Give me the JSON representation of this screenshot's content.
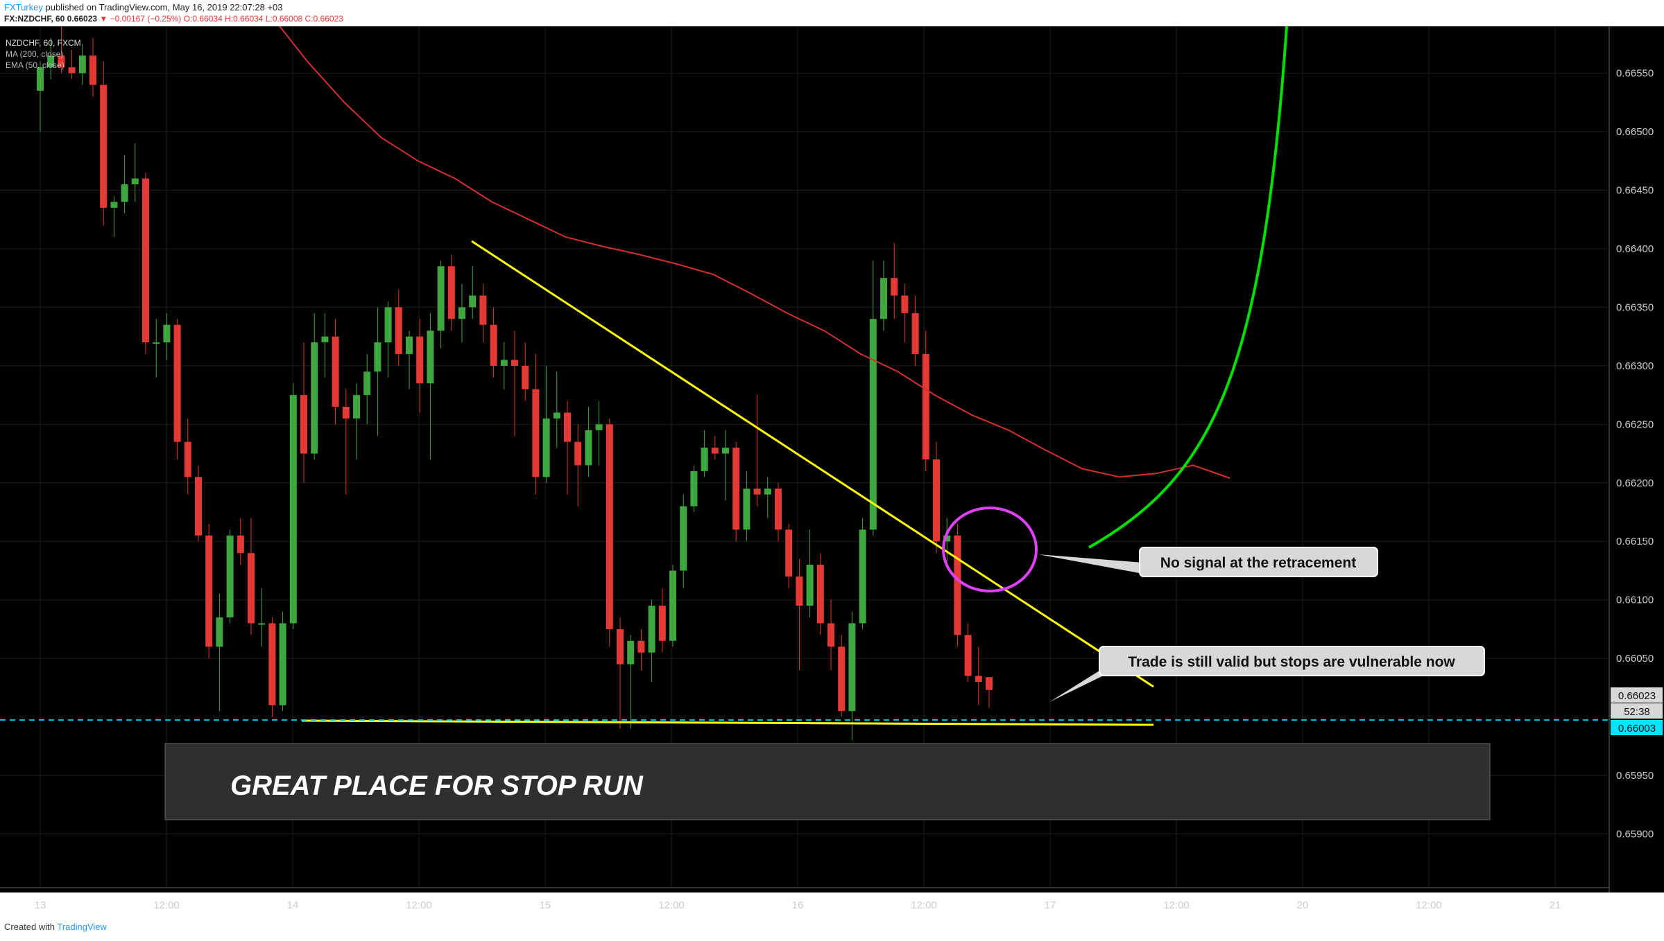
{
  "header": {
    "author": "FXTurkey",
    "published_text": "published on TradingView.com, May 16, 2019 22:07:28 +03",
    "symbol_line": "FX:NZDCHF, 60  0.66023",
    "change": "▼ −0.00167 (−0.25%)",
    "ohlc": "O:0.66034  H:0.66034  L:0.66008  C:0.66023"
  },
  "footer": {
    "created_with": "Created with",
    "brand": "TradingView"
  },
  "colors": {
    "background": "#000000",
    "up_candle": "#3fa73f",
    "down_candle": "#e53935",
    "ema_line": "#d32f2f",
    "trendline": "#ffff00",
    "curve": "#00e000",
    "circle": "#e040fb",
    "dashed_level": "#00bcd4"
  },
  "chart_data": {
    "type": "candlestick",
    "title": "NZDCHF, 60, FXCM",
    "legend": [
      "MA (200, close)",
      "EMA (50, close)"
    ],
    "x_ticks": [
      "13",
      "12:00",
      "14",
      "12:00",
      "15",
      "12:00",
      "16",
      "12:00",
      "17",
      "12:00",
      "20",
      "12:00",
      "21"
    ],
    "y_ticks": [
      "0.66550",
      "0.66500",
      "0.66450",
      "0.66400",
      "0.66350",
      "0.66300",
      "0.66250",
      "0.66200",
      "0.66150",
      "0.66100",
      "0.66050",
      "0.65950",
      "0.65900"
    ],
    "ylim": [
      0.6585,
      0.6659
    ],
    "price_labels": {
      "last": "0.66023",
      "countdown": "52:38",
      "level": "0.66003"
    },
    "candles": [
      {
        "o": 0.66535,
        "h": 0.6656,
        "l": 0.665,
        "c": 0.66555
      },
      {
        "o": 0.66555,
        "h": 0.6658,
        "l": 0.66545,
        "c": 0.66565
      },
      {
        "o": 0.66565,
        "h": 0.6659,
        "l": 0.6655,
        "c": 0.66555
      },
      {
        "o": 0.66555,
        "h": 0.6657,
        "l": 0.66545,
        "c": 0.6655
      },
      {
        "o": 0.6655,
        "h": 0.66575,
        "l": 0.6654,
        "c": 0.66565
      },
      {
        "o": 0.66565,
        "h": 0.6658,
        "l": 0.6653,
        "c": 0.6654
      },
      {
        "o": 0.6654,
        "h": 0.6656,
        "l": 0.6642,
        "c": 0.66435
      },
      {
        "o": 0.66435,
        "h": 0.66445,
        "l": 0.6641,
        "c": 0.6644
      },
      {
        "o": 0.6644,
        "h": 0.6648,
        "l": 0.6643,
        "c": 0.66455
      },
      {
        "o": 0.66455,
        "h": 0.6649,
        "l": 0.6644,
        "c": 0.6646
      },
      {
        "o": 0.6646,
        "h": 0.66465,
        "l": 0.6631,
        "c": 0.6632
      },
      {
        "o": 0.6632,
        "h": 0.6634,
        "l": 0.6629,
        "c": 0.6632
      },
      {
        "o": 0.6632,
        "h": 0.66345,
        "l": 0.66305,
        "c": 0.66335
      },
      {
        "o": 0.66335,
        "h": 0.6634,
        "l": 0.6622,
        "c": 0.66235
      },
      {
        "o": 0.66235,
        "h": 0.66255,
        "l": 0.6619,
        "c": 0.66205
      },
      {
        "o": 0.66205,
        "h": 0.66215,
        "l": 0.6615,
        "c": 0.66155
      },
      {
        "o": 0.66155,
        "h": 0.66165,
        "l": 0.6605,
        "c": 0.6606
      },
      {
        "o": 0.6606,
        "h": 0.66105,
        "l": 0.66005,
        "c": 0.66085
      },
      {
        "o": 0.66085,
        "h": 0.6616,
        "l": 0.6608,
        "c": 0.66155
      },
      {
        "o": 0.66155,
        "h": 0.6617,
        "l": 0.6613,
        "c": 0.6614
      },
      {
        "o": 0.6614,
        "h": 0.6617,
        "l": 0.6607,
        "c": 0.6608
      },
      {
        "o": 0.6608,
        "h": 0.6611,
        "l": 0.6606,
        "c": 0.6608
      },
      {
        "o": 0.6608,
        "h": 0.66085,
        "l": 0.66,
        "c": 0.6601
      },
      {
        "o": 0.6601,
        "h": 0.6609,
        "l": 0.66005,
        "c": 0.6608
      },
      {
        "o": 0.6608,
        "h": 0.66285,
        "l": 0.66075,
        "c": 0.66275
      },
      {
        "o": 0.66275,
        "h": 0.6632,
        "l": 0.662,
        "c": 0.66225
      },
      {
        "o": 0.66225,
        "h": 0.66345,
        "l": 0.6622,
        "c": 0.6632
      },
      {
        "o": 0.6632,
        "h": 0.66345,
        "l": 0.6629,
        "c": 0.66325
      },
      {
        "o": 0.66325,
        "h": 0.6634,
        "l": 0.6625,
        "c": 0.66265
      },
      {
        "o": 0.66265,
        "h": 0.6628,
        "l": 0.6619,
        "c": 0.66255
      },
      {
        "o": 0.66255,
        "h": 0.66285,
        "l": 0.6622,
        "c": 0.66275
      },
      {
        "o": 0.66275,
        "h": 0.6631,
        "l": 0.6625,
        "c": 0.66295
      },
      {
        "o": 0.66295,
        "h": 0.6635,
        "l": 0.6624,
        "c": 0.6632
      },
      {
        "o": 0.6632,
        "h": 0.66355,
        "l": 0.6629,
        "c": 0.6635
      },
      {
        "o": 0.6635,
        "h": 0.66365,
        "l": 0.663,
        "c": 0.6631
      },
      {
        "o": 0.6631,
        "h": 0.6633,
        "l": 0.6628,
        "c": 0.66325
      },
      {
        "o": 0.66325,
        "h": 0.6634,
        "l": 0.6626,
        "c": 0.66285
      },
      {
        "o": 0.66285,
        "h": 0.66345,
        "l": 0.6622,
        "c": 0.6633
      },
      {
        "o": 0.6633,
        "h": 0.6639,
        "l": 0.66315,
        "c": 0.66385
      },
      {
        "o": 0.66385,
        "h": 0.66395,
        "l": 0.6633,
        "c": 0.6634
      },
      {
        "o": 0.6634,
        "h": 0.6637,
        "l": 0.6632,
        "c": 0.6635
      },
      {
        "o": 0.6635,
        "h": 0.66385,
        "l": 0.6634,
        "c": 0.6636
      },
      {
        "o": 0.6636,
        "h": 0.6637,
        "l": 0.6632,
        "c": 0.66335
      },
      {
        "o": 0.66335,
        "h": 0.6635,
        "l": 0.6629,
        "c": 0.663
      },
      {
        "o": 0.663,
        "h": 0.6632,
        "l": 0.6628,
        "c": 0.66305
      },
      {
        "o": 0.66305,
        "h": 0.6633,
        "l": 0.6624,
        "c": 0.663
      },
      {
        "o": 0.663,
        "h": 0.6632,
        "l": 0.6627,
        "c": 0.6628
      },
      {
        "o": 0.6628,
        "h": 0.6631,
        "l": 0.6619,
        "c": 0.66205
      },
      {
        "o": 0.66205,
        "h": 0.663,
        "l": 0.662,
        "c": 0.66255
      },
      {
        "o": 0.66255,
        "h": 0.66295,
        "l": 0.6623,
        "c": 0.6626
      },
      {
        "o": 0.6626,
        "h": 0.6627,
        "l": 0.6619,
        "c": 0.66235
      },
      {
        "o": 0.66235,
        "h": 0.6625,
        "l": 0.6618,
        "c": 0.66215
      },
      {
        "o": 0.66215,
        "h": 0.66265,
        "l": 0.66205,
        "c": 0.66245
      },
      {
        "o": 0.66245,
        "h": 0.6627,
        "l": 0.66215,
        "c": 0.6625
      },
      {
        "o": 0.6625,
        "h": 0.66255,
        "l": 0.6606,
        "c": 0.66075
      },
      {
        "o": 0.66075,
        "h": 0.66085,
        "l": 0.6599,
        "c": 0.66045
      },
      {
        "o": 0.66045,
        "h": 0.6607,
        "l": 0.6599,
        "c": 0.66065
      },
      {
        "o": 0.66065,
        "h": 0.66075,
        "l": 0.6604,
        "c": 0.66055
      },
      {
        "o": 0.66055,
        "h": 0.661,
        "l": 0.6603,
        "c": 0.66095
      },
      {
        "o": 0.66095,
        "h": 0.6611,
        "l": 0.66055,
        "c": 0.66065
      },
      {
        "o": 0.66065,
        "h": 0.6613,
        "l": 0.6606,
        "c": 0.66125
      },
      {
        "o": 0.66125,
        "h": 0.6619,
        "l": 0.6611,
        "c": 0.6618
      },
      {
        "o": 0.6618,
        "h": 0.66215,
        "l": 0.66175,
        "c": 0.6621
      },
      {
        "o": 0.6621,
        "h": 0.66245,
        "l": 0.66205,
        "c": 0.6623
      },
      {
        "o": 0.6623,
        "h": 0.6624,
        "l": 0.6622,
        "c": 0.66225
      },
      {
        "o": 0.66225,
        "h": 0.66245,
        "l": 0.66185,
        "c": 0.6623
      },
      {
        "o": 0.6623,
        "h": 0.66235,
        "l": 0.6615,
        "c": 0.6616
      },
      {
        "o": 0.6616,
        "h": 0.6621,
        "l": 0.6615,
        "c": 0.66195
      },
      {
        "o": 0.66195,
        "h": 0.66275,
        "l": 0.6618,
        "c": 0.6619
      },
      {
        "o": 0.6619,
        "h": 0.66205,
        "l": 0.6617,
        "c": 0.66195
      },
      {
        "o": 0.66195,
        "h": 0.662,
        "l": 0.6615,
        "c": 0.6616
      },
      {
        "o": 0.6616,
        "h": 0.66165,
        "l": 0.6611,
        "c": 0.6612
      },
      {
        "o": 0.6612,
        "h": 0.66135,
        "l": 0.6604,
        "c": 0.66095
      },
      {
        "o": 0.66095,
        "h": 0.6616,
        "l": 0.66085,
        "c": 0.6613
      },
      {
        "o": 0.6613,
        "h": 0.6614,
        "l": 0.6607,
        "c": 0.6608
      },
      {
        "o": 0.6608,
        "h": 0.661,
        "l": 0.6604,
        "c": 0.6606
      },
      {
        "o": 0.6606,
        "h": 0.6607,
        "l": 0.66,
        "c": 0.66005
      },
      {
        "o": 0.66005,
        "h": 0.6609,
        "l": 0.6598,
        "c": 0.6608
      },
      {
        "o": 0.6608,
        "h": 0.6617,
        "l": 0.66075,
        "c": 0.6616
      },
      {
        "o": 0.6616,
        "h": 0.6639,
        "l": 0.66155,
        "c": 0.6634
      },
      {
        "o": 0.6634,
        "h": 0.6639,
        "l": 0.6633,
        "c": 0.66375
      },
      {
        "o": 0.66375,
        "h": 0.66405,
        "l": 0.6634,
        "c": 0.6636
      },
      {
        "o": 0.6636,
        "h": 0.6637,
        "l": 0.6632,
        "c": 0.66345
      },
      {
        "o": 0.66345,
        "h": 0.6636,
        "l": 0.663,
        "c": 0.6631
      },
      {
        "o": 0.6631,
        "h": 0.6633,
        "l": 0.6621,
        "c": 0.6622
      },
      {
        "o": 0.6622,
        "h": 0.66235,
        "l": 0.6614,
        "c": 0.6615
      },
      {
        "o": 0.6615,
        "h": 0.6617,
        "l": 0.6613,
        "c": 0.66155
      },
      {
        "o": 0.66155,
        "h": 0.66165,
        "l": 0.6606,
        "c": 0.6607
      },
      {
        "o": 0.6607,
        "h": 0.6608,
        "l": 0.6603,
        "c": 0.66035
      },
      {
        "o": 0.66035,
        "h": 0.6606,
        "l": 0.6601,
        "c": 0.6603
      },
      {
        "o": 0.66034,
        "h": 0.66034,
        "l": 0.66008,
        "c": 0.66023
      }
    ],
    "ema": [
      0.666,
      0.6656,
      0.66525,
      0.66495,
      0.66475,
      0.6646,
      0.6644,
      0.66425,
      0.6641,
      0.66402,
      0.66395,
      0.66387,
      0.66378,
      0.66362,
      0.66345,
      0.6633,
      0.6631,
      0.66295,
      0.66275,
      0.66258,
      0.66245,
      0.66228,
      0.66212,
      0.66205,
      0.66208,
      0.66215,
      0.66204
    ]
  },
  "annotations": {
    "callout1": "No signal at the retracement",
    "callout2": "Trade is still valid but stops are vulnerable now",
    "stop_run": "GREAT PLACE FOR STOP RUN"
  }
}
